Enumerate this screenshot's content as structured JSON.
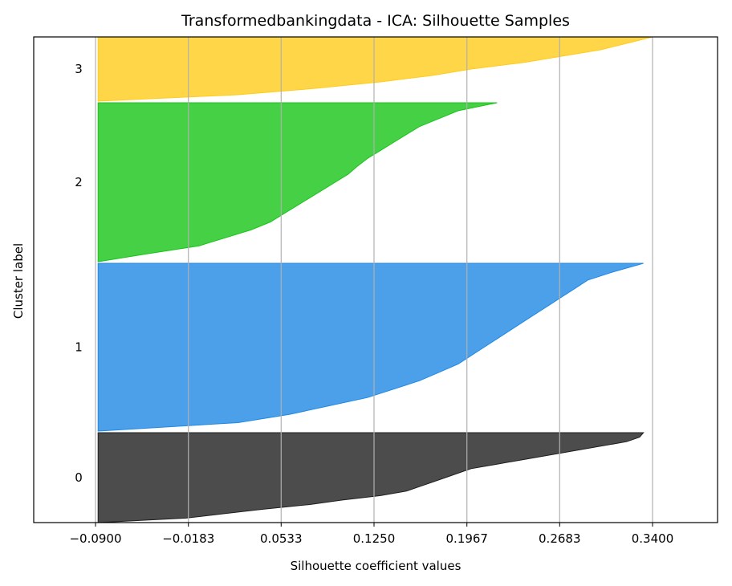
{
  "chart_data": {
    "type": "area",
    "title": "Transformedbankingdata - ICA: Silhouette Samples",
    "xlabel": "Silhouette coefficient values",
    "ylabel": "Cluster label",
    "xlim": [
      -0.09,
      0.39
    ],
    "xticks": [
      -0.09,
      -0.0183,
      0.0533,
      0.125,
      0.1967,
      0.2683,
      0.34
    ],
    "xtick_labels": [
      "−0.0900",
      "−0.0183",
      "0.0533",
      "0.1250",
      "0.1967",
      "0.2683",
      "0.3400"
    ],
    "grid": "vertical",
    "clusters": [
      {
        "label": "0",
        "color": "#1f1f1f",
        "size": 110,
        "values_sorted_asc": [
          [
            0,
            -0.088
          ],
          [
            0.05,
            -0.02
          ],
          [
            0.1,
            0.01
          ],
          [
            0.15,
            0.04
          ],
          [
            0.2,
            0.075
          ],
          [
            0.25,
            0.1
          ],
          [
            0.3,
            0.13
          ],
          [
            0.35,
            0.15
          ],
          [
            0.4,
            0.16
          ],
          [
            0.45,
            0.17
          ],
          [
            0.5,
            0.18
          ],
          [
            0.55,
            0.19
          ],
          [
            0.6,
            0.2
          ],
          [
            0.65,
            0.22
          ],
          [
            0.7,
            0.24
          ],
          [
            0.75,
            0.26
          ],
          [
            0.8,
            0.28
          ],
          [
            0.85,
            0.3
          ],
          [
            0.9,
            0.32
          ],
          [
            0.95,
            0.33
          ],
          [
            1,
            0.333
          ]
        ]
      },
      {
        "label": "1",
        "color": "#1f88e5",
        "size": 205,
        "values_sorted_asc": [
          [
            0,
            -0.088
          ],
          [
            0.05,
            0.02
          ],
          [
            0.1,
            0.06
          ],
          [
            0.15,
            0.09
          ],
          [
            0.2,
            0.12
          ],
          [
            0.25,
            0.14
          ],
          [
            0.3,
            0.16
          ],
          [
            0.35,
            0.175
          ],
          [
            0.4,
            0.19
          ],
          [
            0.45,
            0.2
          ],
          [
            0.5,
            0.21
          ],
          [
            0.55,
            0.22
          ],
          [
            0.6,
            0.23
          ],
          [
            0.65,
            0.24
          ],
          [
            0.7,
            0.25
          ],
          [
            0.75,
            0.26
          ],
          [
            0.8,
            0.27
          ],
          [
            0.85,
            0.28
          ],
          [
            0.9,
            0.29
          ],
          [
            0.95,
            0.31
          ],
          [
            1,
            0.333
          ]
        ]
      },
      {
        "label": "2",
        "color": "#18c418",
        "size": 195,
        "values_sorted_asc": [
          [
            0,
            -0.088
          ],
          [
            0.05,
            -0.05
          ],
          [
            0.1,
            -0.01
          ],
          [
            0.15,
            0.01
          ],
          [
            0.2,
            0.03
          ],
          [
            0.25,
            0.045
          ],
          [
            0.3,
            0.055
          ],
          [
            0.35,
            0.065
          ],
          [
            0.4,
            0.075
          ],
          [
            0.45,
            0.085
          ],
          [
            0.5,
            0.095
          ],
          [
            0.55,
            0.105
          ],
          [
            0.6,
            0.112
          ],
          [
            0.65,
            0.12
          ],
          [
            0.7,
            0.13
          ],
          [
            0.75,
            0.14
          ],
          [
            0.8,
            0.15
          ],
          [
            0.85,
            0.16
          ],
          [
            0.9,
            0.175
          ],
          [
            0.95,
            0.19
          ],
          [
            1,
            0.22
          ]
        ]
      },
      {
        "label": "3",
        "color": "#ffcc1a",
        "size": 75,
        "values_sorted_asc": [
          [
            0,
            -0.088
          ],
          [
            0.1,
            0.02
          ],
          [
            0.2,
            0.08
          ],
          [
            0.3,
            0.13
          ],
          [
            0.4,
            0.17
          ],
          [
            0.5,
            0.2
          ],
          [
            0.6,
            0.24
          ],
          [
            0.7,
            0.27
          ],
          [
            0.8,
            0.3
          ],
          [
            0.9,
            0.32
          ],
          [
            1,
            0.34
          ]
        ]
      }
    ]
  }
}
